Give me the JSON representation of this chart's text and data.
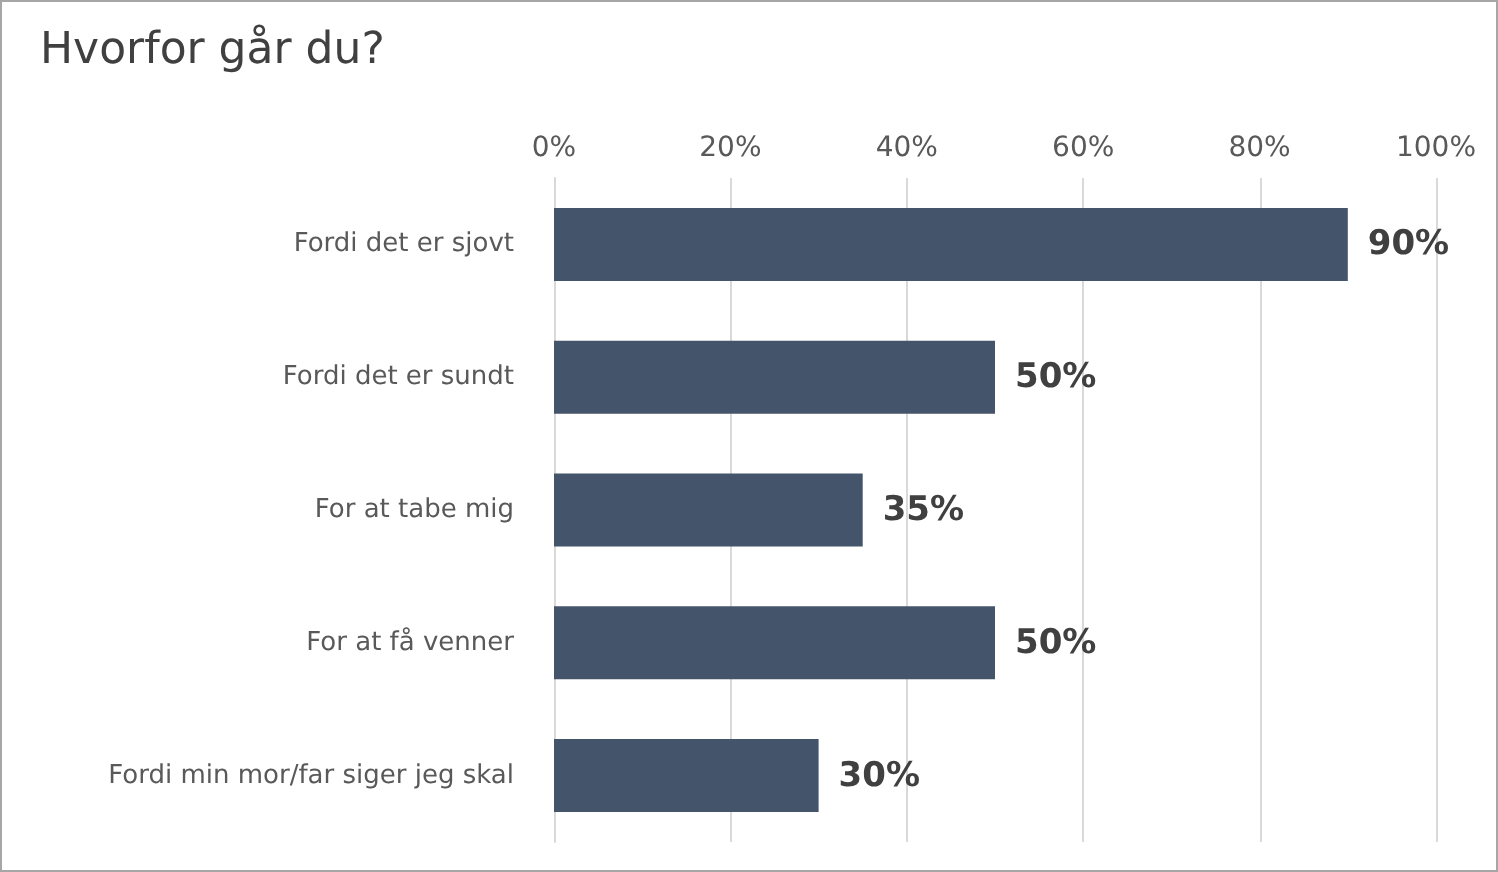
{
  "chart_data": {
    "type": "bar",
    "orientation": "horizontal",
    "title": "Hvorfor går du?",
    "categories": [
      "Fordi det er sjovt",
      "Fordi det er sundt",
      "For at tabe mig",
      "For at få venner",
      "Fordi min mor/far siger jeg skal"
    ],
    "values": [
      90,
      50,
      35,
      50,
      30
    ],
    "value_labels": [
      "90%",
      "50%",
      "35%",
      "50%",
      "30%"
    ],
    "color": "#44546a",
    "xlim": [
      0,
      100
    ],
    "xticks": [
      {
        "value": 0,
        "label": "0%"
      },
      {
        "value": 20,
        "label": "20%"
      },
      {
        "value": 40,
        "label": "40%"
      },
      {
        "value": 60,
        "label": "60%"
      },
      {
        "value": 80,
        "label": "80%"
      },
      {
        "value": 100,
        "label": "100%"
      }
    ],
    "grid": "x"
  }
}
